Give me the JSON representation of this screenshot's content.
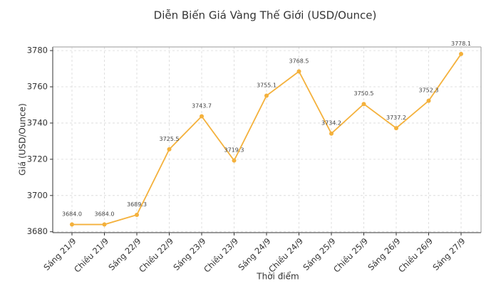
{
  "chart_data": {
    "type": "line",
    "title": "Diễn Biến Giá Vàng Thế Giới (USD/Ounce)",
    "x_label": "Thời điểm",
    "y_label": "Giá (USD/Ounce)",
    "categories": [
      "Sáng 21/9",
      "Chiều 21/9",
      "Sáng 22/9",
      "Chiều 22/9",
      "Sáng 23/9",
      "Chiều 23/9",
      "Sáng 24/9",
      "Chiều 24/9",
      "Sáng 25/9",
      "Chiều 25/9",
      "Sáng 26/9",
      "Chiều 26/9",
      "Sáng 27/9"
    ],
    "values": [
      3684.0,
      3684.0,
      3689.3,
      3725.5,
      3743.7,
      3719.3,
      3755.1,
      3768.5,
      3734.2,
      3750.5,
      3737.2,
      3752.3,
      3778.1
    ],
    "value_labels": [
      "3684.0",
      "3684.0",
      "3689.3",
      "3725.5",
      "3743.7",
      "3719.3",
      "3755.1",
      "3768.5",
      "3734.2",
      "3750.5",
      "3737.2",
      "3752.3",
      "3778.1"
    ],
    "color": "#f4b13c",
    "ylim": [
      3679.5,
      3782
    ],
    "yticks": [
      3680,
      3700,
      3720,
      3740,
      3760,
      3780
    ],
    "grid": true
  }
}
